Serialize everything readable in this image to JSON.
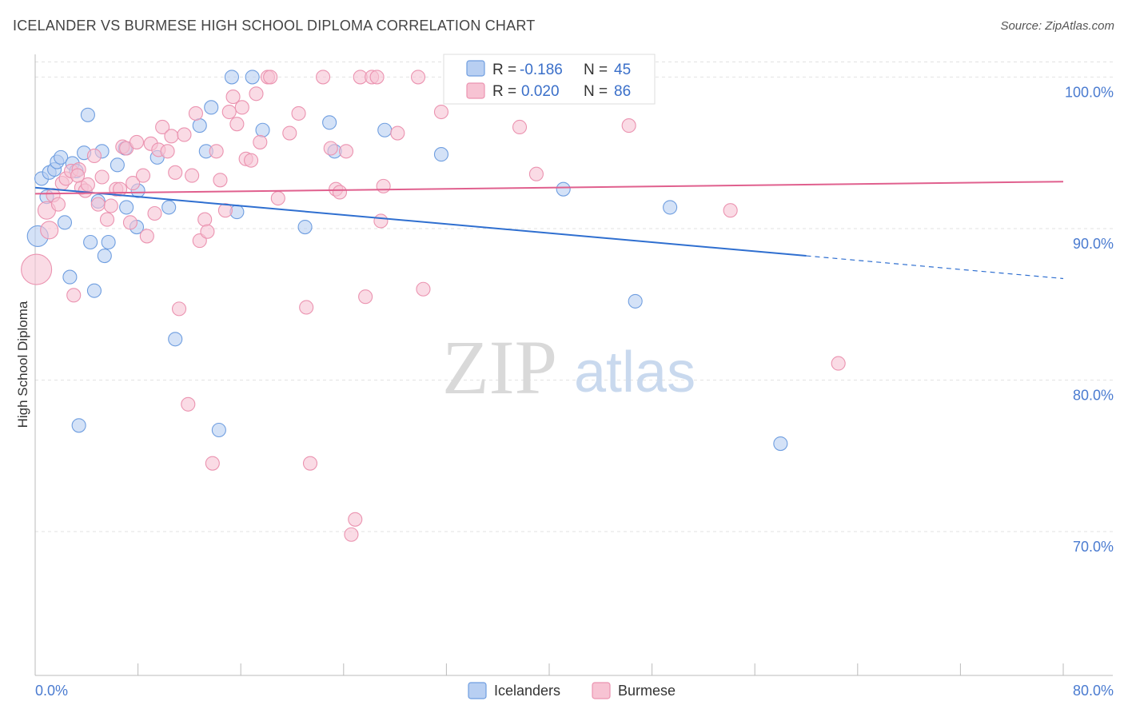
{
  "title": "ICELANDER VS BURMESE HIGH SCHOOL DIPLOMA CORRELATION CHART",
  "source": "Source: ZipAtlas.com",
  "watermark": {
    "zip": "ZIP",
    "atlas": "atlas"
  },
  "colors": {
    "blue_fill": "#b8cff2",
    "blue_stroke": "#6f9ee0",
    "blue_line": "#2f6fd0",
    "pink_fill": "#f7c3d3",
    "pink_stroke": "#eb93b0",
    "pink_line": "#e0608e",
    "grid": "#e2e2e2",
    "tick_text": "#4a7bd0"
  },
  "legend": {
    "rows": [
      {
        "r_label": "R = ",
        "r_value": "-0.186",
        "n_label": "N = ",
        "n_value": "45"
      },
      {
        "r_label": "R = ",
        "r_value": "0.020",
        "n_label": "N = ",
        "n_value": "86"
      }
    ]
  },
  "bottom_legend": [
    "Icelanders",
    "Burmese"
  ],
  "chart_data": {
    "type": "scatter",
    "xlabel": "",
    "ylabel": "High School Diploma",
    "xlim": [
      0,
      80
    ],
    "ylim": [
      60.5,
      101.5
    ],
    "x_tick_labels": [
      {
        "value": 0,
        "label": "0.0%"
      },
      {
        "value": 80,
        "label": "80.0%"
      }
    ],
    "y_tick_labels": [
      {
        "value": 100,
        "label": "100.0%"
      },
      {
        "value": 90,
        "label": "90.0%"
      },
      {
        "value": 80,
        "label": "80.0%"
      },
      {
        "value": 70,
        "label": "70.0%"
      }
    ],
    "grid": true,
    "legend_position": "top-center",
    "series": [
      {
        "name": "Icelanders",
        "R": -0.186,
        "N": 45,
        "trend": {
          "x0": 0,
          "y0": 92.7,
          "x1": 60,
          "y1": 88.2,
          "dash_to_x": 80,
          "dash_to_y": 86.7
        },
        "points": [
          [
            0.2,
            89.5
          ],
          [
            0.5,
            93.3
          ],
          [
            0.9,
            92.1
          ],
          [
            1.1,
            93.7
          ],
          [
            1.5,
            93.9
          ],
          [
            1.7,
            94.4
          ],
          [
            2.0,
            94.7
          ],
          [
            2.3,
            90.4
          ],
          [
            2.7,
            86.8
          ],
          [
            2.9,
            94.3
          ],
          [
            3.2,
            93.8
          ],
          [
            3.4,
            77.0
          ],
          [
            3.8,
            95.0
          ],
          [
            4.1,
            97.5
          ],
          [
            4.3,
            89.1
          ],
          [
            4.6,
            85.9
          ],
          [
            4.9,
            91.8
          ],
          [
            5.2,
            95.1
          ],
          [
            5.4,
            88.2
          ],
          [
            5.7,
            89.1
          ],
          [
            6.4,
            94.2
          ],
          [
            7.0,
            95.3
          ],
          [
            7.1,
            91.4
          ],
          [
            7.9,
            90.1
          ],
          [
            8.0,
            92.5
          ],
          [
            9.5,
            94.7
          ],
          [
            10.4,
            91.4
          ],
          [
            10.9,
            82.7
          ],
          [
            12.8,
            96.8
          ],
          [
            13.3,
            95.1
          ],
          [
            13.7,
            98.0
          ],
          [
            14.3,
            76.7
          ],
          [
            15.3,
            100.0
          ],
          [
            15.7,
            91.1
          ],
          [
            16.9,
            100.0
          ],
          [
            17.7,
            96.5
          ],
          [
            21.0,
            90.1
          ],
          [
            22.9,
            97.0
          ],
          [
            23.3,
            95.1
          ],
          [
            27.2,
            96.5
          ],
          [
            31.6,
            94.9
          ],
          [
            41.1,
            92.6
          ],
          [
            49.4,
            91.4
          ],
          [
            46.7,
            85.2
          ],
          [
            58.0,
            75.8
          ]
        ]
      },
      {
        "name": "Burmese",
        "R": 0.02,
        "N": 86,
        "trend": {
          "x0": 0,
          "y0": 92.3,
          "x1": 80,
          "y1": 93.1
        },
        "points": [
          [
            0.1,
            87.3
          ],
          [
            0.9,
            91.2
          ],
          [
            1.1,
            89.9
          ],
          [
            1.4,
            92.2
          ],
          [
            1.8,
            91.6
          ],
          [
            2.1,
            93.0
          ],
          [
            2.4,
            93.3
          ],
          [
            2.8,
            93.8
          ],
          [
            3.0,
            85.6
          ],
          [
            3.4,
            93.9
          ],
          [
            3.6,
            92.7
          ],
          [
            3.9,
            92.5
          ],
          [
            4.1,
            92.9
          ],
          [
            4.6,
            94.8
          ],
          [
            4.9,
            91.6
          ],
          [
            5.2,
            93.4
          ],
          [
            5.6,
            90.6
          ],
          [
            5.9,
            91.5
          ],
          [
            6.3,
            92.6
          ],
          [
            6.6,
            92.6
          ],
          [
            6.8,
            95.4
          ],
          [
            7.1,
            95.3
          ],
          [
            7.4,
            90.4
          ],
          [
            7.6,
            93.0
          ],
          [
            7.9,
            95.7
          ],
          [
            8.4,
            93.5
          ],
          [
            8.7,
            89.5
          ],
          [
            9.0,
            95.6
          ],
          [
            9.3,
            91.0
          ],
          [
            9.6,
            95.2
          ],
          [
            9.9,
            96.7
          ],
          [
            10.3,
            95.1
          ],
          [
            10.6,
            96.1
          ],
          [
            10.9,
            93.7
          ],
          [
            11.2,
            84.7
          ],
          [
            11.6,
            96.2
          ],
          [
            11.9,
            78.4
          ],
          [
            12.2,
            93.5
          ],
          [
            12.5,
            97.6
          ],
          [
            12.8,
            89.2
          ],
          [
            13.2,
            90.6
          ],
          [
            13.4,
            89.8
          ],
          [
            13.8,
            74.5
          ],
          [
            14.1,
            95.1
          ],
          [
            14.4,
            93.2
          ],
          [
            14.8,
            91.2
          ],
          [
            15.1,
            97.7
          ],
          [
            15.4,
            98.7
          ],
          [
            15.7,
            96.9
          ],
          [
            16.1,
            98.0
          ],
          [
            16.4,
            94.6
          ],
          [
            16.8,
            94.5
          ],
          [
            17.2,
            98.9
          ],
          [
            17.5,
            95.7
          ],
          [
            18.1,
            100.0
          ],
          [
            18.9,
            92.0
          ],
          [
            19.8,
            96.3
          ],
          [
            20.5,
            97.6
          ],
          [
            21.1,
            84.8
          ],
          [
            21.4,
            74.5
          ],
          [
            22.4,
            100.0
          ],
          [
            23.0,
            95.3
          ],
          [
            23.4,
            92.6
          ],
          [
            23.7,
            92.4
          ],
          [
            24.2,
            95.1
          ],
          [
            24.6,
            69.8
          ],
          [
            24.9,
            70.8
          ],
          [
            25.3,
            100.0
          ],
          [
            25.7,
            85.5
          ],
          [
            26.2,
            100.0
          ],
          [
            26.6,
            100.0
          ],
          [
            27.1,
            92.8
          ],
          [
            26.9,
            90.5
          ],
          [
            28.2,
            96.3
          ],
          [
            29.8,
            100.0
          ],
          [
            30.2,
            86.0
          ],
          [
            31.6,
            97.7
          ],
          [
            33.2,
            100.0
          ],
          [
            37.7,
            96.7
          ],
          [
            39.0,
            93.6
          ],
          [
            46.2,
            96.8
          ],
          [
            54.1,
            91.2
          ],
          [
            62.5,
            81.1
          ],
          [
            35.1,
            100.0
          ],
          [
            18.3,
            100.0
          ],
          [
            3.3,
            93.5
          ]
        ]
      }
    ]
  }
}
